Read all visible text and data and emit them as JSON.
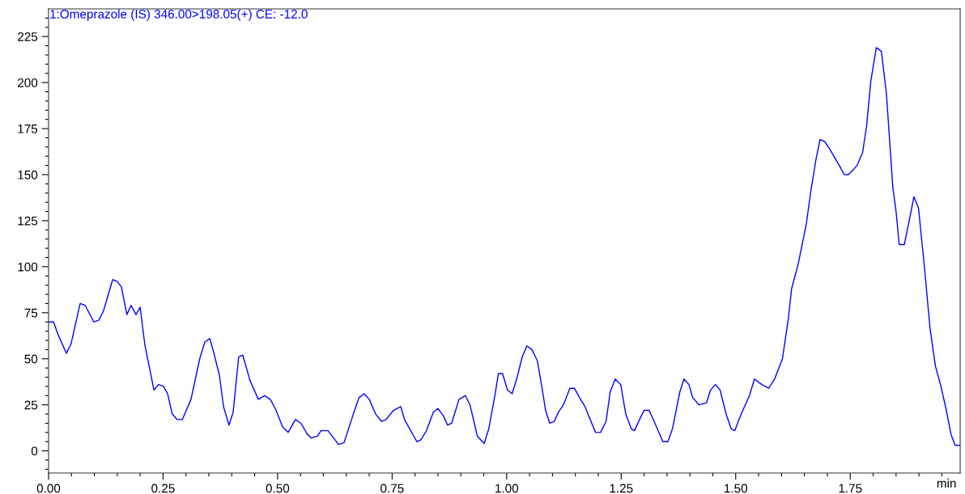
{
  "chart_data": {
    "type": "line",
    "title": "1:Omeprazole (IS) 346.00>198.05(+) CE: -12.0",
    "xlabel": "min",
    "xlim": [
      0,
      1.99
    ],
    "ylim": [
      -12,
      240
    ],
    "xticks": [
      {
        "value": 0,
        "label": "0.00"
      },
      {
        "value": 0.05,
        "label": null
      },
      {
        "value": 0.1,
        "label": null
      },
      {
        "value": 0.15,
        "label": null
      },
      {
        "value": 0.2,
        "label": null
      },
      {
        "value": 0.25,
        "label": "0.25"
      },
      {
        "value": 0.3,
        "label": null
      },
      {
        "value": 0.35,
        "label": null
      },
      {
        "value": 0.4,
        "label": null
      },
      {
        "value": 0.45,
        "label": null
      },
      {
        "value": 0.5,
        "label": "0.50"
      },
      {
        "value": 0.55,
        "label": null
      },
      {
        "value": 0.6,
        "label": null
      },
      {
        "value": 0.65,
        "label": null
      },
      {
        "value": 0.7,
        "label": null
      },
      {
        "value": 0.75,
        "label": "0.75"
      },
      {
        "value": 0.8,
        "label": null
      },
      {
        "value": 0.85,
        "label": null
      },
      {
        "value": 0.9,
        "label": null
      },
      {
        "value": 0.95,
        "label": null
      },
      {
        "value": 1.0,
        "label": "1.00"
      },
      {
        "value": 1.05,
        "label": null
      },
      {
        "value": 1.1,
        "label": null
      },
      {
        "value": 1.15,
        "label": null
      },
      {
        "value": 1.2,
        "label": null
      },
      {
        "value": 1.25,
        "label": "1.25"
      },
      {
        "value": 1.3,
        "label": null
      },
      {
        "value": 1.35,
        "label": null
      },
      {
        "value": 1.4,
        "label": null
      },
      {
        "value": 1.45,
        "label": null
      },
      {
        "value": 1.5,
        "label": "1.50"
      },
      {
        "value": 1.55,
        "label": null
      },
      {
        "value": 1.6,
        "label": null
      },
      {
        "value": 1.65,
        "label": null
      },
      {
        "value": 1.7,
        "label": null
      },
      {
        "value": 1.75,
        "label": "1.75"
      },
      {
        "value": 1.8,
        "label": null
      },
      {
        "value": 1.85,
        "label": null
      },
      {
        "value": 1.9,
        "label": null
      },
      {
        "value": 1.95,
        "label": null
      }
    ],
    "yticks": [
      {
        "value": -10,
        "label": null
      },
      {
        "value": -5,
        "label": null
      },
      0,
      {
        "value": 5,
        "label": null
      },
      {
        "value": 10,
        "label": null
      },
      {
        "value": 15,
        "label": null
      },
      {
        "value": 20,
        "label": null
      },
      25,
      {
        "value": 30,
        "label": null
      },
      {
        "value": 35,
        "label": null
      },
      {
        "value": 40,
        "label": null
      },
      {
        "value": 45,
        "label": null
      },
      50,
      {
        "value": 55,
        "label": null
      },
      {
        "value": 60,
        "label": null
      },
      {
        "value": 65,
        "label": null
      },
      {
        "value": 70,
        "label": null
      },
      75,
      {
        "value": 80,
        "label": null
      },
      {
        "value": 85,
        "label": null
      },
      {
        "value": 90,
        "label": null
      },
      {
        "value": 95,
        "label": null
      },
      100,
      {
        "value": 105,
        "label": null
      },
      {
        "value": 110,
        "label": null
      },
      {
        "value": 115,
        "label": null
      },
      {
        "value": 120,
        "label": null
      },
      125,
      {
        "value": 130,
        "label": null
      },
      {
        "value": 135,
        "label": null
      },
      {
        "value": 140,
        "label": null
      },
      {
        "value": 145,
        "label": null
      },
      150,
      {
        "value": 155,
        "label": null
      },
      {
        "value": 160,
        "label": null
      },
      {
        "value": 165,
        "label": null
      },
      {
        "value": 170,
        "label": null
      },
      175,
      {
        "value": 180,
        "label": null
      },
      {
        "value": 185,
        "label": null
      },
      {
        "value": 190,
        "label": null
      },
      {
        "value": 195,
        "label": null
      },
      200,
      {
        "value": 205,
        "label": null
      },
      {
        "value": 210,
        "label": null
      },
      {
        "value": 215,
        "label": null
      },
      {
        "value": 220,
        "label": null
      },
      225,
      {
        "value": 230,
        "label": null
      },
      {
        "value": 235,
        "label": null
      }
    ],
    "grid": false,
    "legend": false,
    "marker": "none",
    "line_style": "solid",
    "series": [
      {
        "color": "#0000ff",
        "x": [
          0,
          0.011,
          0.021,
          0.039,
          0.049,
          0.069,
          0.08,
          0.099,
          0.11,
          0.12,
          0.14,
          0.15,
          0.159,
          0.171,
          0.18,
          0.191,
          0.2,
          0.21,
          0.23,
          0.24,
          0.251,
          0.26,
          0.27,
          0.281,
          0.292,
          0.311,
          0.33,
          0.341,
          0.352,
          0.36,
          0.373,
          0.382,
          0.394,
          0.403,
          0.415,
          0.424,
          0.44,
          0.458,
          0.472,
          0.484,
          0.495,
          0.511,
          0.523,
          0.539,
          0.551,
          0.565,
          0.574,
          0.587,
          0.595,
          0.61,
          0.633,
          0.645,
          0.668,
          0.678,
          0.689,
          0.7,
          0.714,
          0.727,
          0.737,
          0.753,
          0.769,
          0.777,
          0.804,
          0.813,
          0.825,
          0.84,
          0.85,
          0.862,
          0.871,
          0.88,
          0.896,
          0.91,
          0.92,
          0.936,
          0.951,
          0.961,
          0.975,
          0.982,
          0.991,
          1.002,
          1.012,
          1.023,
          1.034,
          1.044,
          1.055,
          1.067,
          1.078,
          1.085,
          1.094,
          1.104,
          1.113,
          1.124,
          1.138,
          1.148,
          1.159,
          1.171,
          1.194,
          1.205,
          1.217,
          1.226,
          1.237,
          1.249,
          1.26,
          1.272,
          1.279,
          1.292,
          1.3,
          1.311,
          1.322,
          1.341,
          1.352,
          1.362,
          1.378,
          1.387,
          1.398,
          1.406,
          1.42,
          1.436,
          1.445,
          1.456,
          1.466,
          1.479,
          1.49,
          1.498,
          1.512,
          1.53,
          1.541,
          1.557,
          1.572,
          1.585,
          1.602,
          1.615,
          1.622,
          1.636,
          1.654,
          1.664,
          1.675,
          1.684,
          1.694,
          1.705,
          1.726,
          1.737,
          1.746,
          1.758,
          1.765,
          1.777,
          1.786,
          1.795,
          1.807,
          1.818,
          1.829,
          1.843,
          1.85,
          1.857,
          1.868,
          1.878,
          1.889,
          1.899,
          1.913,
          1.924,
          1.936,
          1.947,
          1.959,
          1.97,
          1.979,
          1.988
        ],
        "values": [
          70,
          70,
          63,
          53,
          58,
          80,
          79,
          70,
          71,
          76,
          93,
          92,
          89,
          74,
          79,
          74,
          78,
          58,
          33,
          36,
          35,
          31,
          20,
          17,
          17,
          28,
          50,
          59,
          61,
          54,
          41,
          24,
          14,
          21,
          51,
          52,
          38,
          28,
          30,
          28,
          23,
          13,
          10,
          17,
          15,
          9,
          7,
          8,
          11,
          11,
          3.5,
          4.4,
          22,
          29,
          31,
          28,
          20,
          16,
          17,
          22,
          24,
          17,
          5,
          6,
          11,
          21,
          23,
          19,
          14,
          15,
          28,
          30,
          25,
          8,
          4,
          12,
          31,
          42,
          42,
          33,
          31,
          40,
          51,
          57,
          55,
          49,
          33,
          22,
          15,
          16,
          21,
          25,
          34,
          34,
          29,
          24,
          10,
          10,
          16,
          32,
          39,
          36,
          20,
          12,
          11,
          18,
          22,
          22,
          16,
          5,
          5,
          12,
          32,
          39,
          36,
          29,
          25,
          26,
          33,
          36,
          33,
          20,
          12,
          11,
          20,
          30,
          39,
          36,
          34,
          39,
          50,
          72,
          88,
          101,
          123,
          141,
          158,
          169,
          168,
          164,
          155,
          150,
          150,
          153,
          155,
          162,
          177,
          201,
          219,
          217,
          194,
          143,
          130,
          112,
          112,
          124,
          138,
          132,
          97,
          67,
          46,
          36,
          23,
          9,
          3,
          3
        ]
      }
    ]
  }
}
